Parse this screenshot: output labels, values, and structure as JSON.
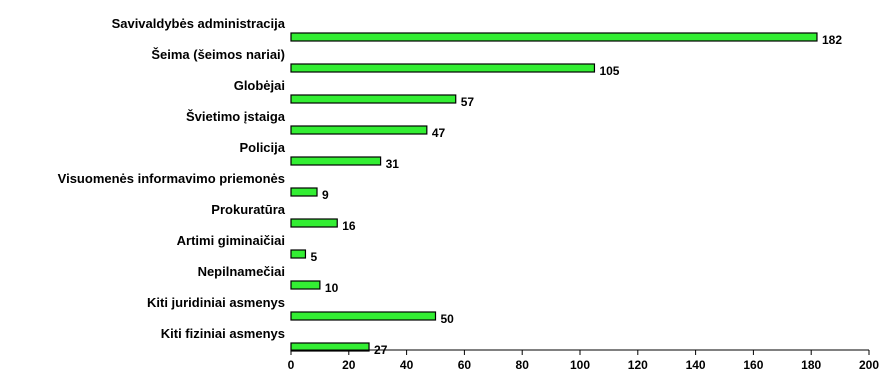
{
  "chart_data": {
    "type": "bar",
    "orientation": "horizontal",
    "categories": [
      "Savivaldybės administracija",
      "Šeima (šeimos nariai)",
      "Globėjai",
      "Švietimo įstaiga",
      "Policija",
      "Visuomenės informavimo priemonės",
      "Prokuratūra",
      "Artimi giminaičiai",
      "Nepilnamečiai",
      "Kiti juridiniai asmenys",
      "Kiti fiziniai asmenys"
    ],
    "values": [
      182,
      105,
      57,
      47,
      31,
      9,
      16,
      5,
      10,
      50,
      27
    ],
    "xlim": [
      0,
      200
    ],
    "xticks": [
      0,
      20,
      40,
      60,
      80,
      100,
      120,
      140,
      160,
      180,
      200
    ],
    "bar_color": "#33ee33",
    "bar_outline": "#000000",
    "grid": false,
    "legend": false,
    "title": "",
    "xlabel": "",
    "ylabel": ""
  }
}
